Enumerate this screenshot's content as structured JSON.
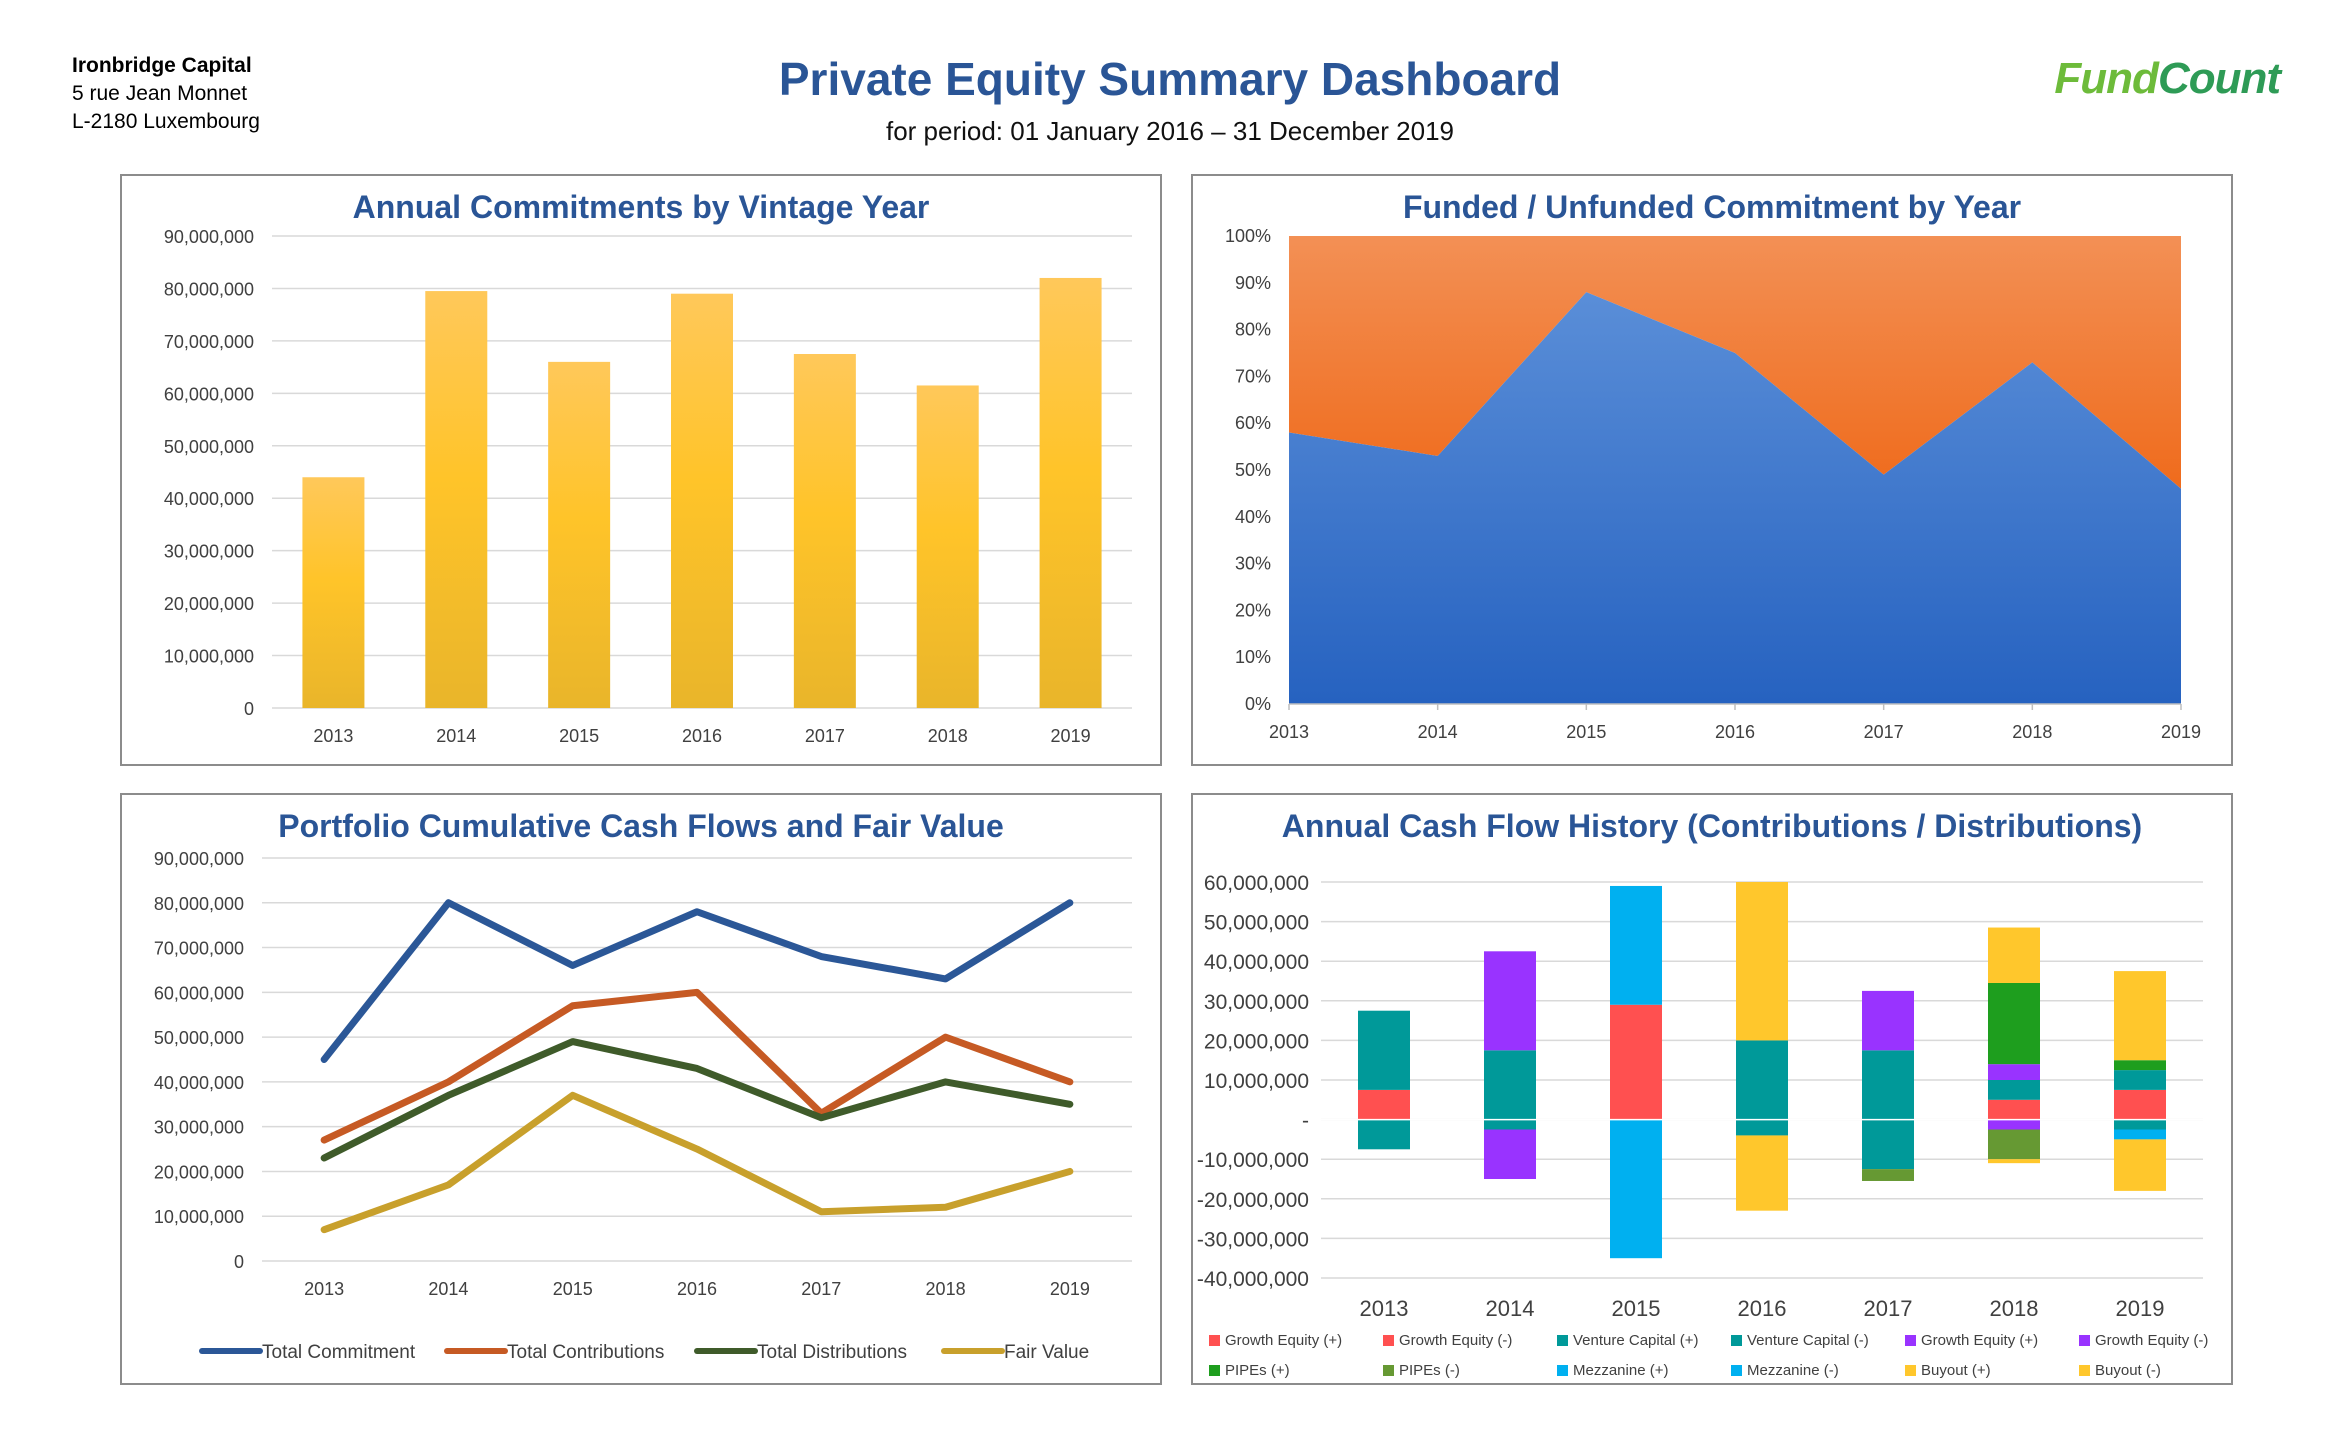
{
  "header": {
    "company_name": "Ironbridge Capital",
    "address_line1": "5 rue Jean Monnet",
    "address_line2": "L-2180 Luxembourg",
    "title": "Private Equity Summary Dashboard",
    "subtitle": "for period: 01 January 2016 – 31 December 2019",
    "logo_part1": "Fund",
    "logo_part2": "Count"
  },
  "colors": {
    "title_blue": "#2a5596",
    "bar_gold": "#fcc12e",
    "funded_blue": "#3a75cc",
    "unfunded_orange": "#f07a32"
  },
  "chart_data": [
    {
      "type": "bar",
      "title": "Annual Commitments by Vintage Year",
      "categories": [
        "2013",
        "2014",
        "2015",
        "2016",
        "2017",
        "2018",
        "2019"
      ],
      "values": [
        44000000,
        79500000,
        66000000,
        79000000,
        67500000,
        61500000,
        82000000
      ],
      "yticks": [
        "0",
        "10,000,000",
        "20,000,000",
        "30,000,000",
        "40,000,000",
        "50,000,000",
        "60,000,000",
        "70,000,000",
        "80,000,000",
        "90,000,000"
      ],
      "ylim": [
        0,
        90000000
      ],
      "grid": true
    },
    {
      "type": "area",
      "title": "Funded / Unfunded Commitment by Year",
      "categories": [
        "2013",
        "2014",
        "2015",
        "2016",
        "2017",
        "2018",
        "2019"
      ],
      "stacked_percent": true,
      "series": [
        {
          "values": [
            0.58,
            0.53,
            0.88,
            0.75,
            0.49,
            0.73,
            0.46
          ],
          "color": "#3a75cc"
        },
        {
          "values": [
            0.42,
            0.47,
            0.12,
            0.25,
            0.51,
            0.27,
            0.54
          ],
          "color": "#f07a32"
        }
      ],
      "yticks": [
        "0%",
        "10%",
        "20%",
        "30%",
        "40%",
        "50%",
        "60%",
        "70%",
        "80%",
        "90%",
        "100%"
      ],
      "ylim": [
        0,
        1
      ]
    },
    {
      "type": "line",
      "title": "Portfolio Cumulative Cash Flows and Fair Value",
      "categories": [
        "2013",
        "2014",
        "2015",
        "2016",
        "2017",
        "2018",
        "2019"
      ],
      "series": [
        {
          "name": "Total Commitment",
          "color": "#2b5797",
          "values": [
            45000000,
            80000000,
            66000000,
            78000000,
            68000000,
            63000000,
            80000000
          ]
        },
        {
          "name": "Total Contributions",
          "color": "#c65a24",
          "values": [
            27000000,
            40000000,
            57000000,
            60000000,
            33000000,
            50000000,
            40000000
          ]
        },
        {
          "name": "Total Distributions",
          "color": "#3f5b2a",
          "values": [
            23000000,
            37000000,
            49000000,
            43000000,
            32000000,
            40000000,
            35000000
          ]
        },
        {
          "name": "Fair Value",
          "color": "#c8a02c",
          "values": [
            7000000,
            17000000,
            37000000,
            25000000,
            11000000,
            12000000,
            20000000
          ]
        }
      ],
      "yticks": [
        "0",
        "10,000,000",
        "20,000,000",
        "30,000,000",
        "40,000,000",
        "50,000,000",
        "60,000,000",
        "70,000,000",
        "80,000,000",
        "90,000,000"
      ],
      "ylim": [
        0,
        90000000
      ],
      "legend": "bottom"
    },
    {
      "type": "bar",
      "stacked": true,
      "title": "Annual Cash Flow History (Contributions / Distributions)",
      "categories": [
        "2013",
        "2014",
        "2015",
        "2016",
        "2017",
        "2018",
        "2019"
      ],
      "yticks": [
        "-40,000,000",
        "-30,000,000",
        "-20,000,000",
        "-10,000,000",
        "-",
        "10,000,000",
        "20,000,000",
        "30,000,000",
        "40,000,000",
        "50,000,000",
        "60,000,000"
      ],
      "ylim": [
        -40000000,
        60000000
      ],
      "legend": "bottom",
      "series": [
        {
          "name": "Growth Equity (+)",
          "color": "#ff5050",
          "values": [
            7500000,
            0,
            29000000,
            0,
            0,
            5000000,
            7500000
          ]
        },
        {
          "name": "Growth Equity (-)",
          "color": "#ff5050",
          "values": [
            0,
            0,
            0,
            0,
            0,
            0,
            0
          ]
        },
        {
          "name": "Venture Capital (+)",
          "color": "#009999",
          "values": [
            20000000,
            17500000,
            0,
            20000000,
            17500000,
            5000000,
            5000000
          ]
        },
        {
          "name": "Venture Capital (-)",
          "color": "#009999",
          "values": [
            -7500000,
            -2500000,
            0,
            -4000000,
            -12500000,
            0,
            -2500000
          ]
        },
        {
          "name": "Growth Equity (+)",
          "color": "#9933ff",
          "values": [
            0,
            25000000,
            0,
            0,
            15000000,
            4000000,
            0
          ]
        },
        {
          "name": "Growth Equity (-)",
          "color": "#9933ff",
          "values": [
            0,
            -12500000,
            0,
            0,
            0,
            -2500000,
            0
          ]
        },
        {
          "name": "PIPEs (+)",
          "color": "#1e9e1e",
          "values": [
            0,
            0,
            0,
            0,
            0,
            20500000,
            2500000
          ]
        },
        {
          "name": "PIPEs (-)",
          "color": "#669933",
          "values": [
            0,
            0,
            0,
            0,
            -3000000,
            -7500000,
            0
          ]
        },
        {
          "name": "Mezzanine (+)",
          "color": "#00b0f0",
          "values": [
            0,
            0,
            30000000,
            0,
            0,
            0,
            0
          ]
        },
        {
          "name": "Mezzanine (-)",
          "color": "#00b0f0",
          "values": [
            0,
            0,
            -35000000,
            0,
            0,
            0,
            -2500000
          ]
        },
        {
          "name": "Buyout (+)",
          "color": "#ffc72c",
          "values": [
            0,
            0,
            0,
            40000000,
            0,
            14000000,
            22500000
          ]
        },
        {
          "name": "Buyout (-)",
          "color": "#ffc72c",
          "values": [
            0,
            0,
            0,
            -19000000,
            0,
            -1000000,
            -13000000
          ]
        }
      ]
    }
  ]
}
